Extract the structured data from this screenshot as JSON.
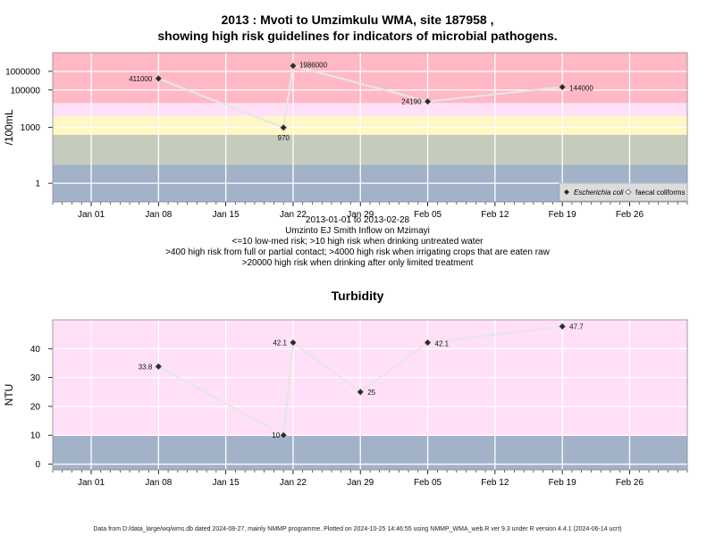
{
  "chart_data": [
    {
      "type": "scatter",
      "title_line1": "2013 : Mvoti to Umzimkulu WMA, site 187958 ,",
      "title_line2": "showing high risk guidelines for indicators of microbial pathogens.",
      "ylabel": "/100mL",
      "y_scale": "log",
      "ylim": [
        0.1,
        10000000
      ],
      "y_ticks": [
        {
          "value": 1,
          "label": "1"
        },
        {
          "value": 1000,
          "label": "1000"
        },
        {
          "value": 100000,
          "label": "100000"
        },
        {
          "value": 1000000,
          "label": "1000000"
        }
      ],
      "xlim": [
        "2012-12-28",
        "2013-03-04"
      ],
      "x_ticks": [
        {
          "date": "2013-01-01",
          "label": "Jan 01"
        },
        {
          "date": "2013-01-08",
          "label": "Jan 08"
        },
        {
          "date": "2013-01-15",
          "label": "Jan 15"
        },
        {
          "date": "2013-01-22",
          "label": "Jan 22"
        },
        {
          "date": "2013-01-29",
          "label": "Jan 29"
        },
        {
          "date": "2013-02-05",
          "label": "Feb 05"
        },
        {
          "date": "2013-02-12",
          "label": "Feb 12"
        },
        {
          "date": "2013-02-19",
          "label": "Feb 19"
        },
        {
          "date": "2013-02-26",
          "label": "Feb 26"
        }
      ],
      "bands": [
        {
          "from": 0.1,
          "to": 10,
          "color": "#a2b2c8"
        },
        {
          "from": 10,
          "to": 400,
          "color": "#c6ccbc"
        },
        {
          "from": 400,
          "to": 4000,
          "color": "#fff8c4"
        },
        {
          "from": 4000,
          "to": 20000,
          "color": "#ffe0f8"
        },
        {
          "from": 20000,
          "to": 10000000,
          "color": "#ffb8c4"
        }
      ],
      "series": [
        {
          "name": "Escherichia coli",
          "points": [
            {
              "date": "2013-01-08",
              "value": 411000,
              "label": "411000"
            },
            {
              "date": "2013-01-21",
              "value": 970,
              "label": "970"
            },
            {
              "date": "2013-01-22",
              "value": 1986000,
              "label": "1986000"
            },
            {
              "date": "2013-02-05",
              "value": 24190,
              "label": "24190"
            },
            {
              "date": "2013-02-19",
              "value": 144000,
              "label": "144000"
            }
          ]
        },
        {
          "name": "faecal coliforms",
          "points": []
        }
      ],
      "legend_position": "bottom-right",
      "grid": true,
      "captions": [
        "2013-01-01 to 2013-02-28",
        "Umzinto EJ Smith Inflow on Mzimayi",
        "<=10 low-med risk; >10 high risk when drinking untreated water",
        ">400 high risk from full or partial contact; >4000 high risk when irrigating crops that are eaten raw",
        ">20000 high risk when drinking after only limited treatment"
      ]
    },
    {
      "type": "scatter",
      "title": "Turbidity",
      "ylabel": "NTU",
      "ylim": [
        -2,
        50
      ],
      "y_ticks": [
        {
          "value": 0,
          "label": "0"
        },
        {
          "value": 10,
          "label": "10"
        },
        {
          "value": 20,
          "label": "20"
        },
        {
          "value": 30,
          "label": "30"
        },
        {
          "value": 40,
          "label": "40"
        }
      ],
      "xlim": [
        "2012-12-28",
        "2013-03-04"
      ],
      "x_ticks": [
        {
          "date": "2013-01-01",
          "label": "Jan 01"
        },
        {
          "date": "2013-01-08",
          "label": "Jan 08"
        },
        {
          "date": "2013-01-15",
          "label": "Jan 15"
        },
        {
          "date": "2013-01-22",
          "label": "Jan 22"
        },
        {
          "date": "2013-01-29",
          "label": "Jan 29"
        },
        {
          "date": "2013-02-05",
          "label": "Feb 05"
        },
        {
          "date": "2013-02-12",
          "label": "Feb 12"
        },
        {
          "date": "2013-02-19",
          "label": "Feb 19"
        },
        {
          "date": "2013-02-26",
          "label": "Feb 26"
        }
      ],
      "bands": [
        {
          "from": -2,
          "to": 10,
          "color": "#a2b2c8"
        },
        {
          "from": 10,
          "to": 50,
          "color": "#ffe0f8"
        }
      ],
      "series": [
        {
          "points": [
            {
              "date": "2013-01-08",
              "value": 33.8,
              "label": "33.8"
            },
            {
              "date": "2013-01-21",
              "value": 10,
              "label": "10"
            },
            {
              "date": "2013-01-22",
              "value": 42.1,
              "label": "42.1"
            },
            {
              "date": "2013-01-29",
              "value": 25,
              "label": "25"
            },
            {
              "date": "2013-02-05",
              "value": 42.1,
              "label": "42.1"
            },
            {
              "date": "2013-02-19",
              "value": 47.7,
              "label": "47.7"
            }
          ]
        }
      ],
      "grid": true
    }
  ],
  "footer": "Data from D:/data_large/wq/wms.db dated 2024-08-27, mainly NMMP programme. Plotted on 2024-10-25 14:46:55 using NMMP_WMA_web.R ver 9.3 under R version 4.4.1 (2024-06-14 ucrt)"
}
